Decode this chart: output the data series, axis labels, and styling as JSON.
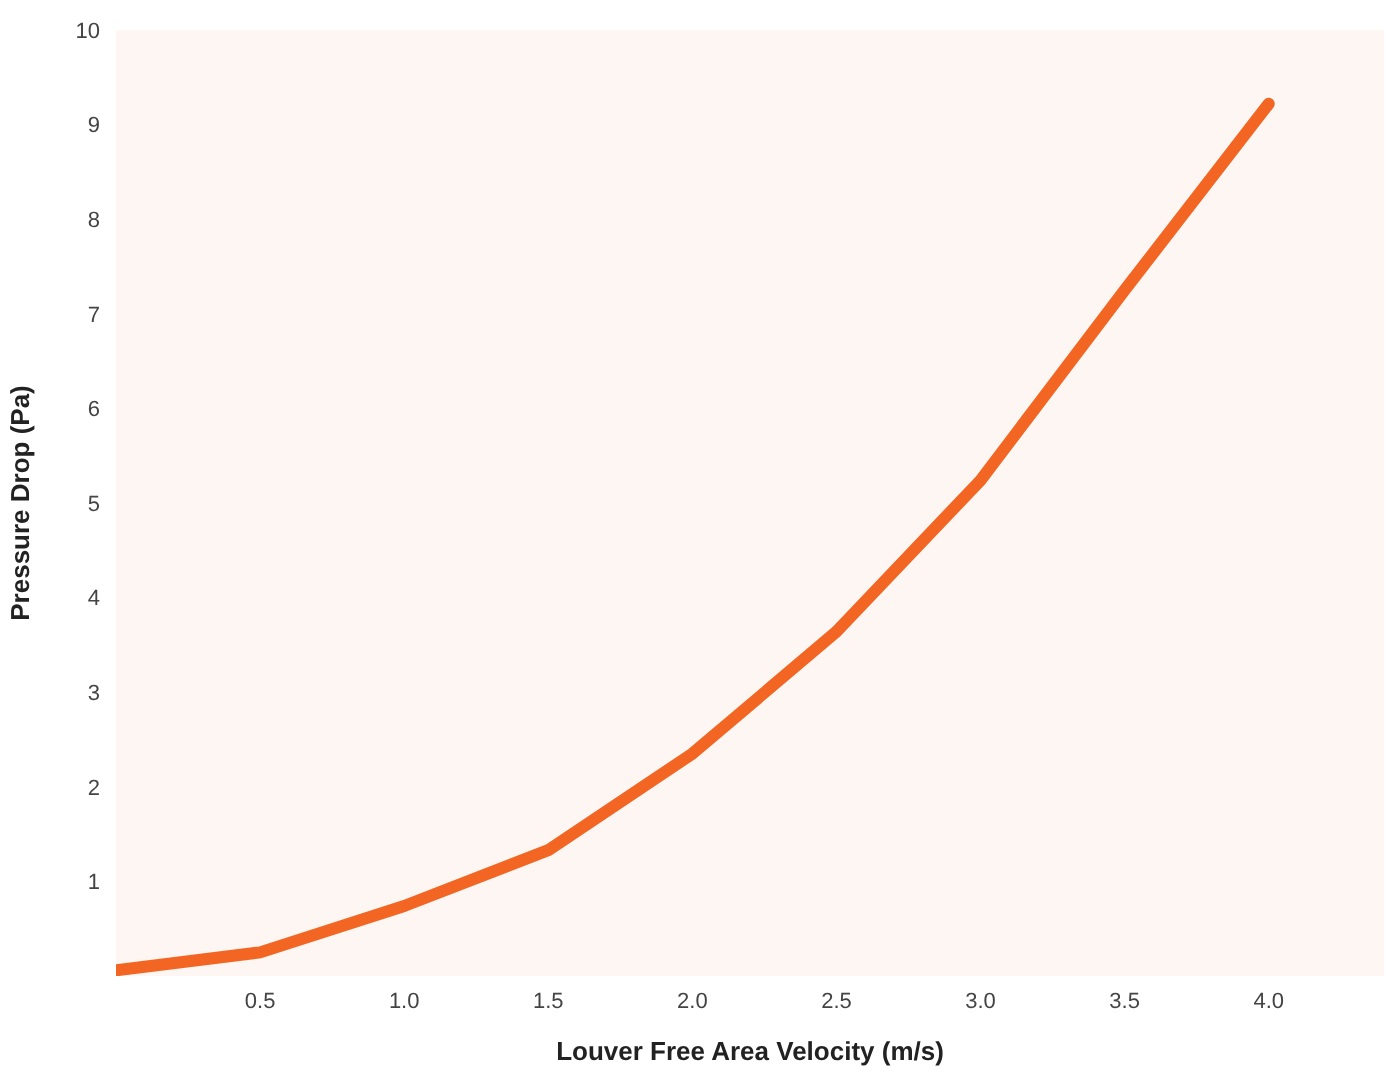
{
  "chart_data": {
    "type": "line",
    "xlabel": "Louver Free Area Velocity (m/s)",
    "ylabel": "Pressure Drop (Pa)",
    "x": [
      0,
      0.5,
      1.0,
      1.5,
      2.0,
      2.5,
      3.0,
      3.5,
      4.0
    ],
    "series": [
      {
        "color": "#f26522",
        "values": [
          0.06,
          0.25,
          0.74,
          1.33,
          2.35,
          3.64,
          5.24,
          7.25,
          9.22
        ]
      }
    ],
    "xlim": [
      0,
      4.4
    ],
    "xticks": [
      0.5,
      {
        "value": 1,
        "label": "1.0"
      },
      1.5,
      {
        "value": 2,
        "label": "2.0"
      },
      2.5,
      {
        "value": 3,
        "label": "3.0"
      },
      3.5,
      {
        "value": 4,
        "label": "4.0"
      }
    ],
    "ylim": [
      0,
      10
    ],
    "yticks": [
      1,
      2,
      3,
      4,
      5,
      6,
      7,
      8,
      9,
      10
    ],
    "marker": "none",
    "line_style": "solid"
  }
}
